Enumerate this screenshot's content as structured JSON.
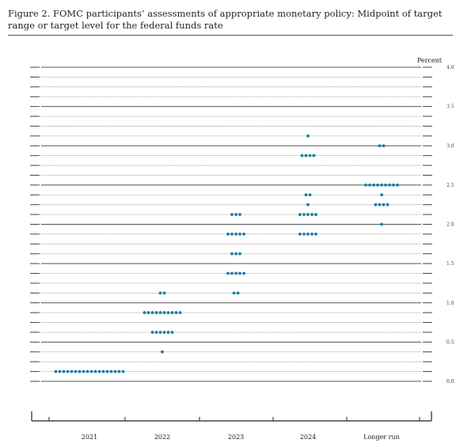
{
  "figure": {
    "title": "Figure 2.  FOMC participants’ assessments of appropriate monetary policy:  Midpoint of target range or target level for the federal funds rate"
  },
  "chart_data": {
    "type": "scatter",
    "subtype": "dot-plot",
    "unit_label": "Percent",
    "ylim": [
      0,
      4.0
    ],
    "y_ticks": [
      "0.0",
      "0.5",
      "1.0",
      "1.5",
      "2.0",
      "2.5",
      "3.0",
      "3.5",
      "4.0"
    ],
    "categories": [
      "2021",
      "2022",
      "2023",
      "2024",
      "Longer run"
    ],
    "dot_color": "#1a7ba6",
    "series": [
      {
        "category": "2021",
        "points": [
          {
            "y": 0.125,
            "count": 18
          }
        ]
      },
      {
        "category": "2022",
        "points": [
          {
            "y": 0.375,
            "count": 1
          },
          {
            "y": 0.625,
            "count": 6
          },
          {
            "y": 0.875,
            "count": 10
          },
          {
            "y": 1.125,
            "count": 2
          }
        ]
      },
      {
        "category": "2023",
        "points": [
          {
            "y": 1.125,
            "count": 2
          },
          {
            "y": 1.375,
            "count": 5
          },
          {
            "y": 1.625,
            "count": 3
          },
          {
            "y": 1.875,
            "count": 5
          },
          {
            "y": 2.125,
            "count": 3
          }
        ]
      },
      {
        "category": "2024",
        "points": [
          {
            "y": 1.875,
            "count": 5
          },
          {
            "y": 2.125,
            "count": 5
          },
          {
            "y": 2.25,
            "count": 1
          },
          {
            "y": 2.375,
            "count": 2
          },
          {
            "y": 2.875,
            "count": 4
          },
          {
            "y": 3.125,
            "count": 1
          }
        ]
      },
      {
        "category": "Longer run",
        "points": [
          {
            "y": 2.0,
            "count": 1
          },
          {
            "y": 2.25,
            "count": 4
          },
          {
            "y": 2.375,
            "count": 1
          },
          {
            "y": 2.5,
            "count": 9
          },
          {
            "y": 3.0,
            "count": 2
          }
        ]
      }
    ]
  }
}
